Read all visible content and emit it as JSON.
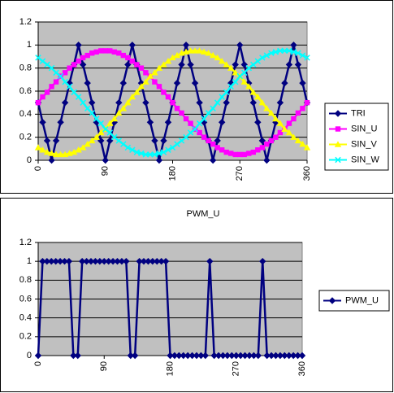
{
  "chart_data": [
    {
      "type": "line",
      "x": [
        0,
        6,
        12,
        18,
        24,
        30,
        36,
        42,
        48,
        54,
        60,
        66,
        72,
        78,
        84,
        90,
        96,
        102,
        108,
        114,
        120,
        126,
        132,
        138,
        144,
        150,
        156,
        162,
        168,
        174,
        180,
        186,
        192,
        198,
        204,
        210,
        216,
        222,
        228,
        234,
        240,
        246,
        252,
        258,
        264,
        270,
        276,
        282,
        288,
        294,
        300,
        306,
        312,
        318,
        324,
        330,
        336,
        342,
        348,
        354,
        360
      ],
      "xlim": [
        0,
        360
      ],
      "xticks": [
        0,
        90,
        180,
        270,
        360
      ],
      "ylim": [
        0,
        1.2
      ],
      "yticks": [
        0,
        0.2,
        0.4,
        0.6,
        0.8,
        1,
        1.2
      ],
      "grid": true,
      "legend": "right",
      "series": [
        {
          "name": "TRI",
          "color": "#000080",
          "marker": "diamond",
          "values": [
            0.5,
            0.33,
            0.17,
            0,
            0.17,
            0.33,
            0.5,
            0.67,
            0.83,
            1,
            0.83,
            0.67,
            0.5,
            0.33,
            0.17,
            0,
            0.17,
            0.33,
            0.5,
            0.67,
            0.83,
            1,
            0.83,
            0.67,
            0.5,
            0.33,
            0.17,
            0,
            0.17,
            0.33,
            0.5,
            0.67,
            0.83,
            1,
            0.83,
            0.67,
            0.5,
            0.33,
            0.17,
            0,
            0.17,
            0.33,
            0.5,
            0.67,
            0.83,
            1,
            0.83,
            0.67,
            0.5,
            0.33,
            0.17,
            0,
            0.17,
            0.33,
            0.5,
            0.67,
            0.83,
            1,
            0.83,
            0.67,
            0.5
          ]
        },
        {
          "name": "SIN_U",
          "color": "#ff00ff",
          "marker": "square",
          "values": [
            0.5,
            0.55,
            0.59,
            0.64,
            0.68,
            0.73,
            0.76,
            0.8,
            0.83,
            0.86,
            0.89,
            0.91,
            0.93,
            0.94,
            0.95,
            0.95,
            0.95,
            0.94,
            0.93,
            0.91,
            0.89,
            0.86,
            0.83,
            0.8,
            0.76,
            0.73,
            0.68,
            0.64,
            0.59,
            0.55,
            0.5,
            0.45,
            0.41,
            0.36,
            0.32,
            0.27,
            0.24,
            0.2,
            0.17,
            0.14,
            0.11,
            0.09,
            0.07,
            0.06,
            0.05,
            0.05,
            0.05,
            0.06,
            0.07,
            0.09,
            0.11,
            0.14,
            0.17,
            0.2,
            0.24,
            0.27,
            0.32,
            0.36,
            0.41,
            0.45,
            0.5
          ]
        },
        {
          "name": "SIN_V",
          "color": "#ffff00",
          "marker": "triangle",
          "values": [
            0.11,
            0.09,
            0.07,
            0.06,
            0.05,
            0.05,
            0.05,
            0.06,
            0.07,
            0.09,
            0.11,
            0.14,
            0.17,
            0.2,
            0.24,
            0.27,
            0.32,
            0.36,
            0.41,
            0.45,
            0.5,
            0.55,
            0.59,
            0.64,
            0.68,
            0.73,
            0.76,
            0.8,
            0.83,
            0.86,
            0.89,
            0.91,
            0.93,
            0.94,
            0.95,
            0.95,
            0.95,
            0.94,
            0.93,
            0.91,
            0.89,
            0.86,
            0.83,
            0.8,
            0.76,
            0.73,
            0.68,
            0.64,
            0.59,
            0.55,
            0.5,
            0.45,
            0.41,
            0.36,
            0.32,
            0.27,
            0.24,
            0.2,
            0.17,
            0.14,
            0.11
          ]
        },
        {
          "name": "SIN_W",
          "color": "#00ffff",
          "marker": "x",
          "values": [
            0.89,
            0.86,
            0.83,
            0.8,
            0.76,
            0.73,
            0.68,
            0.64,
            0.59,
            0.55,
            0.5,
            0.45,
            0.41,
            0.36,
            0.32,
            0.27,
            0.24,
            0.2,
            0.17,
            0.14,
            0.11,
            0.09,
            0.07,
            0.06,
            0.05,
            0.05,
            0.05,
            0.06,
            0.07,
            0.09,
            0.11,
            0.14,
            0.17,
            0.2,
            0.24,
            0.27,
            0.32,
            0.36,
            0.41,
            0.45,
            0.5,
            0.55,
            0.59,
            0.64,
            0.68,
            0.73,
            0.76,
            0.8,
            0.83,
            0.86,
            0.89,
            0.91,
            0.93,
            0.94,
            0.95,
            0.95,
            0.95,
            0.94,
            0.93,
            0.91,
            0.89
          ]
        }
      ]
    },
    {
      "type": "line",
      "title": "PWM_U",
      "x": [
        0,
        6,
        12,
        18,
        24,
        30,
        36,
        42,
        48,
        54,
        60,
        66,
        72,
        78,
        84,
        90,
        96,
        102,
        108,
        114,
        120,
        126,
        132,
        138,
        144,
        150,
        156,
        162,
        168,
        174,
        180,
        186,
        192,
        198,
        204,
        210,
        216,
        222,
        228,
        234,
        240,
        246,
        252,
        258,
        264,
        270,
        276,
        282,
        288,
        294,
        300,
        306,
        312,
        318,
        324,
        330,
        336,
        342,
        348,
        354,
        360
      ],
      "xlim": [
        0,
        360
      ],
      "xticks": [
        0,
        90,
        180,
        270,
        360
      ],
      "ylim": [
        0,
        1.2
      ],
      "yticks": [
        0,
        0.2,
        0.4,
        0.6,
        0.8,
        1,
        1.2
      ],
      "grid": true,
      "legend": "right",
      "series": [
        {
          "name": "PWM_U",
          "color": "#000080",
          "marker": "diamond",
          "values": [
            0,
            1,
            1,
            1,
            1,
            1,
            1,
            1,
            0,
            0,
            1,
            1,
            1,
            1,
            1,
            1,
            1,
            1,
            1,
            1,
            1,
            0,
            0,
            1,
            1,
            1,
            1,
            1,
            1,
            1,
            0,
            0,
            0,
            0,
            0,
            0,
            0,
            0,
            0,
            1,
            0,
            0,
            0,
            0,
            0,
            0,
            0,
            0,
            0,
            0,
            0,
            1,
            0,
            0,
            0,
            0,
            0,
            0,
            0,
            0,
            0
          ]
        }
      ]
    }
  ]
}
